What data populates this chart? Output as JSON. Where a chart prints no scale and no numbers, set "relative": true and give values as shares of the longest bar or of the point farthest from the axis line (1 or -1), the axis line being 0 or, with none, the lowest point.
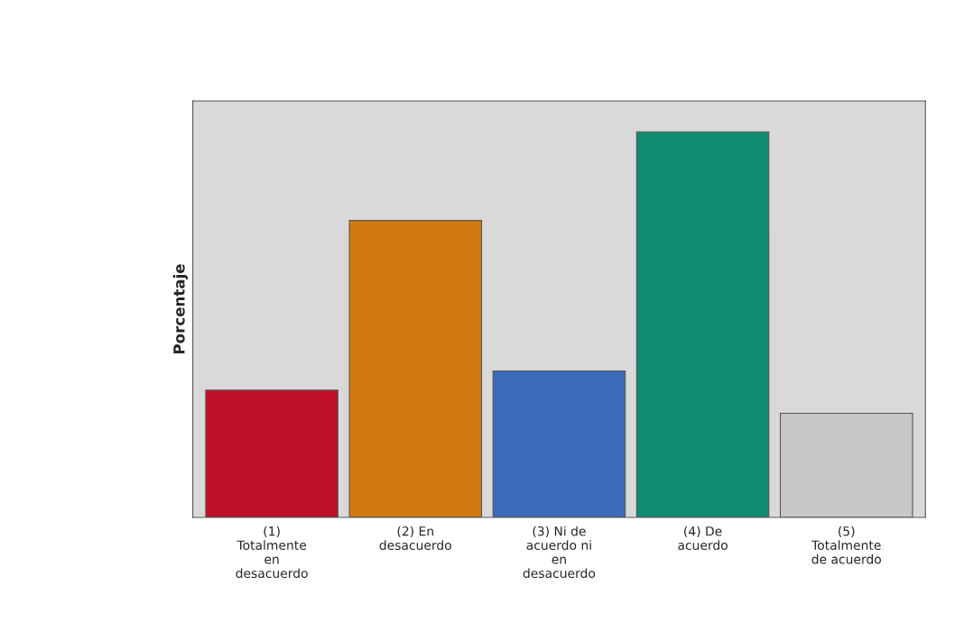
{
  "chart_data": {
    "type": "bar",
    "relative": true,
    "ylabel": "Porcentaje",
    "categories": [
      "(1)\nTotalmente\nen\ndesacuerdo",
      "(2) En\ndesacuerdo",
      "(3) Ni de\nacuerdo ni\nen\ndesacuerdo",
      "(4) De\nacuerdo",
      "(5)\nTotalmente\nde acuerdo"
    ],
    "values": [
      0.33,
      0.77,
      0.38,
      1.0,
      0.27
    ],
    "colors": [
      "#c0102a",
      "#d07a10",
      "#3a6ab8",
      "#108a70",
      "#c8c8c8"
    ],
    "grid": false
  }
}
